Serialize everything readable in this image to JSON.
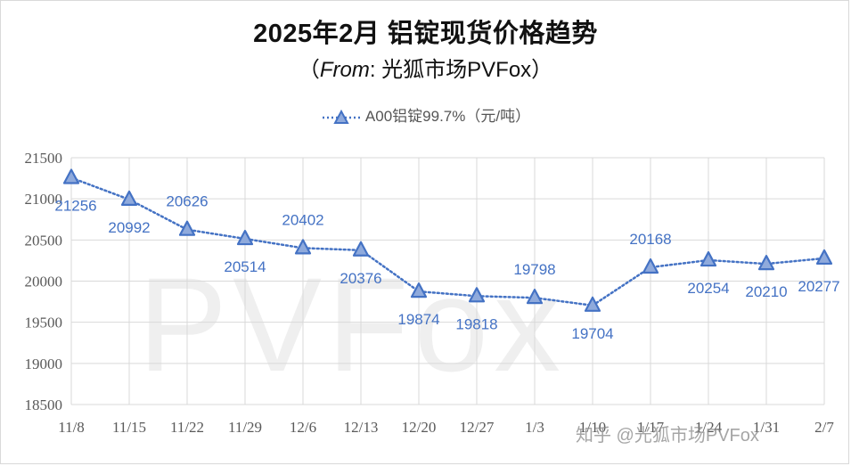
{
  "header": {
    "title": "2025年2月 铝锭现货价格趋势",
    "subtitle_open": "（",
    "subtitle_source": "From",
    "subtitle_rest": ": 光狐市场PVFox）"
  },
  "watermark": "PVFox",
  "footer_mark": "知乎 @光狐市场PVFox",
  "colors": {
    "series": "#4472c4",
    "label": "#4472c4",
    "grid": "#d9d9d9",
    "axis_text": "#595959"
  },
  "chart_data": {
    "type": "line",
    "legend_position": "top",
    "grid": true,
    "ylim": [
      18500,
      21500
    ],
    "yticks": [
      18500,
      19000,
      19500,
      20000,
      20500,
      21000,
      21500
    ],
    "categories": [
      "11/8",
      "11/15",
      "11/22",
      "11/29",
      "12/6",
      "12/13",
      "12/20",
      "12/27",
      "1/3",
      "1/10",
      "1/17",
      "1/24",
      "1/31",
      "2/7"
    ],
    "series": [
      {
        "name": "A00铝锭99.7%（元/吨）",
        "marker": "triangle",
        "line_style": "dotted",
        "values": [
          21256,
          20992,
          20626,
          20514,
          20402,
          20376,
          19874,
          19818,
          19798,
          19704,
          20168,
          20254,
          20210,
          20277
        ]
      }
    ]
  }
}
